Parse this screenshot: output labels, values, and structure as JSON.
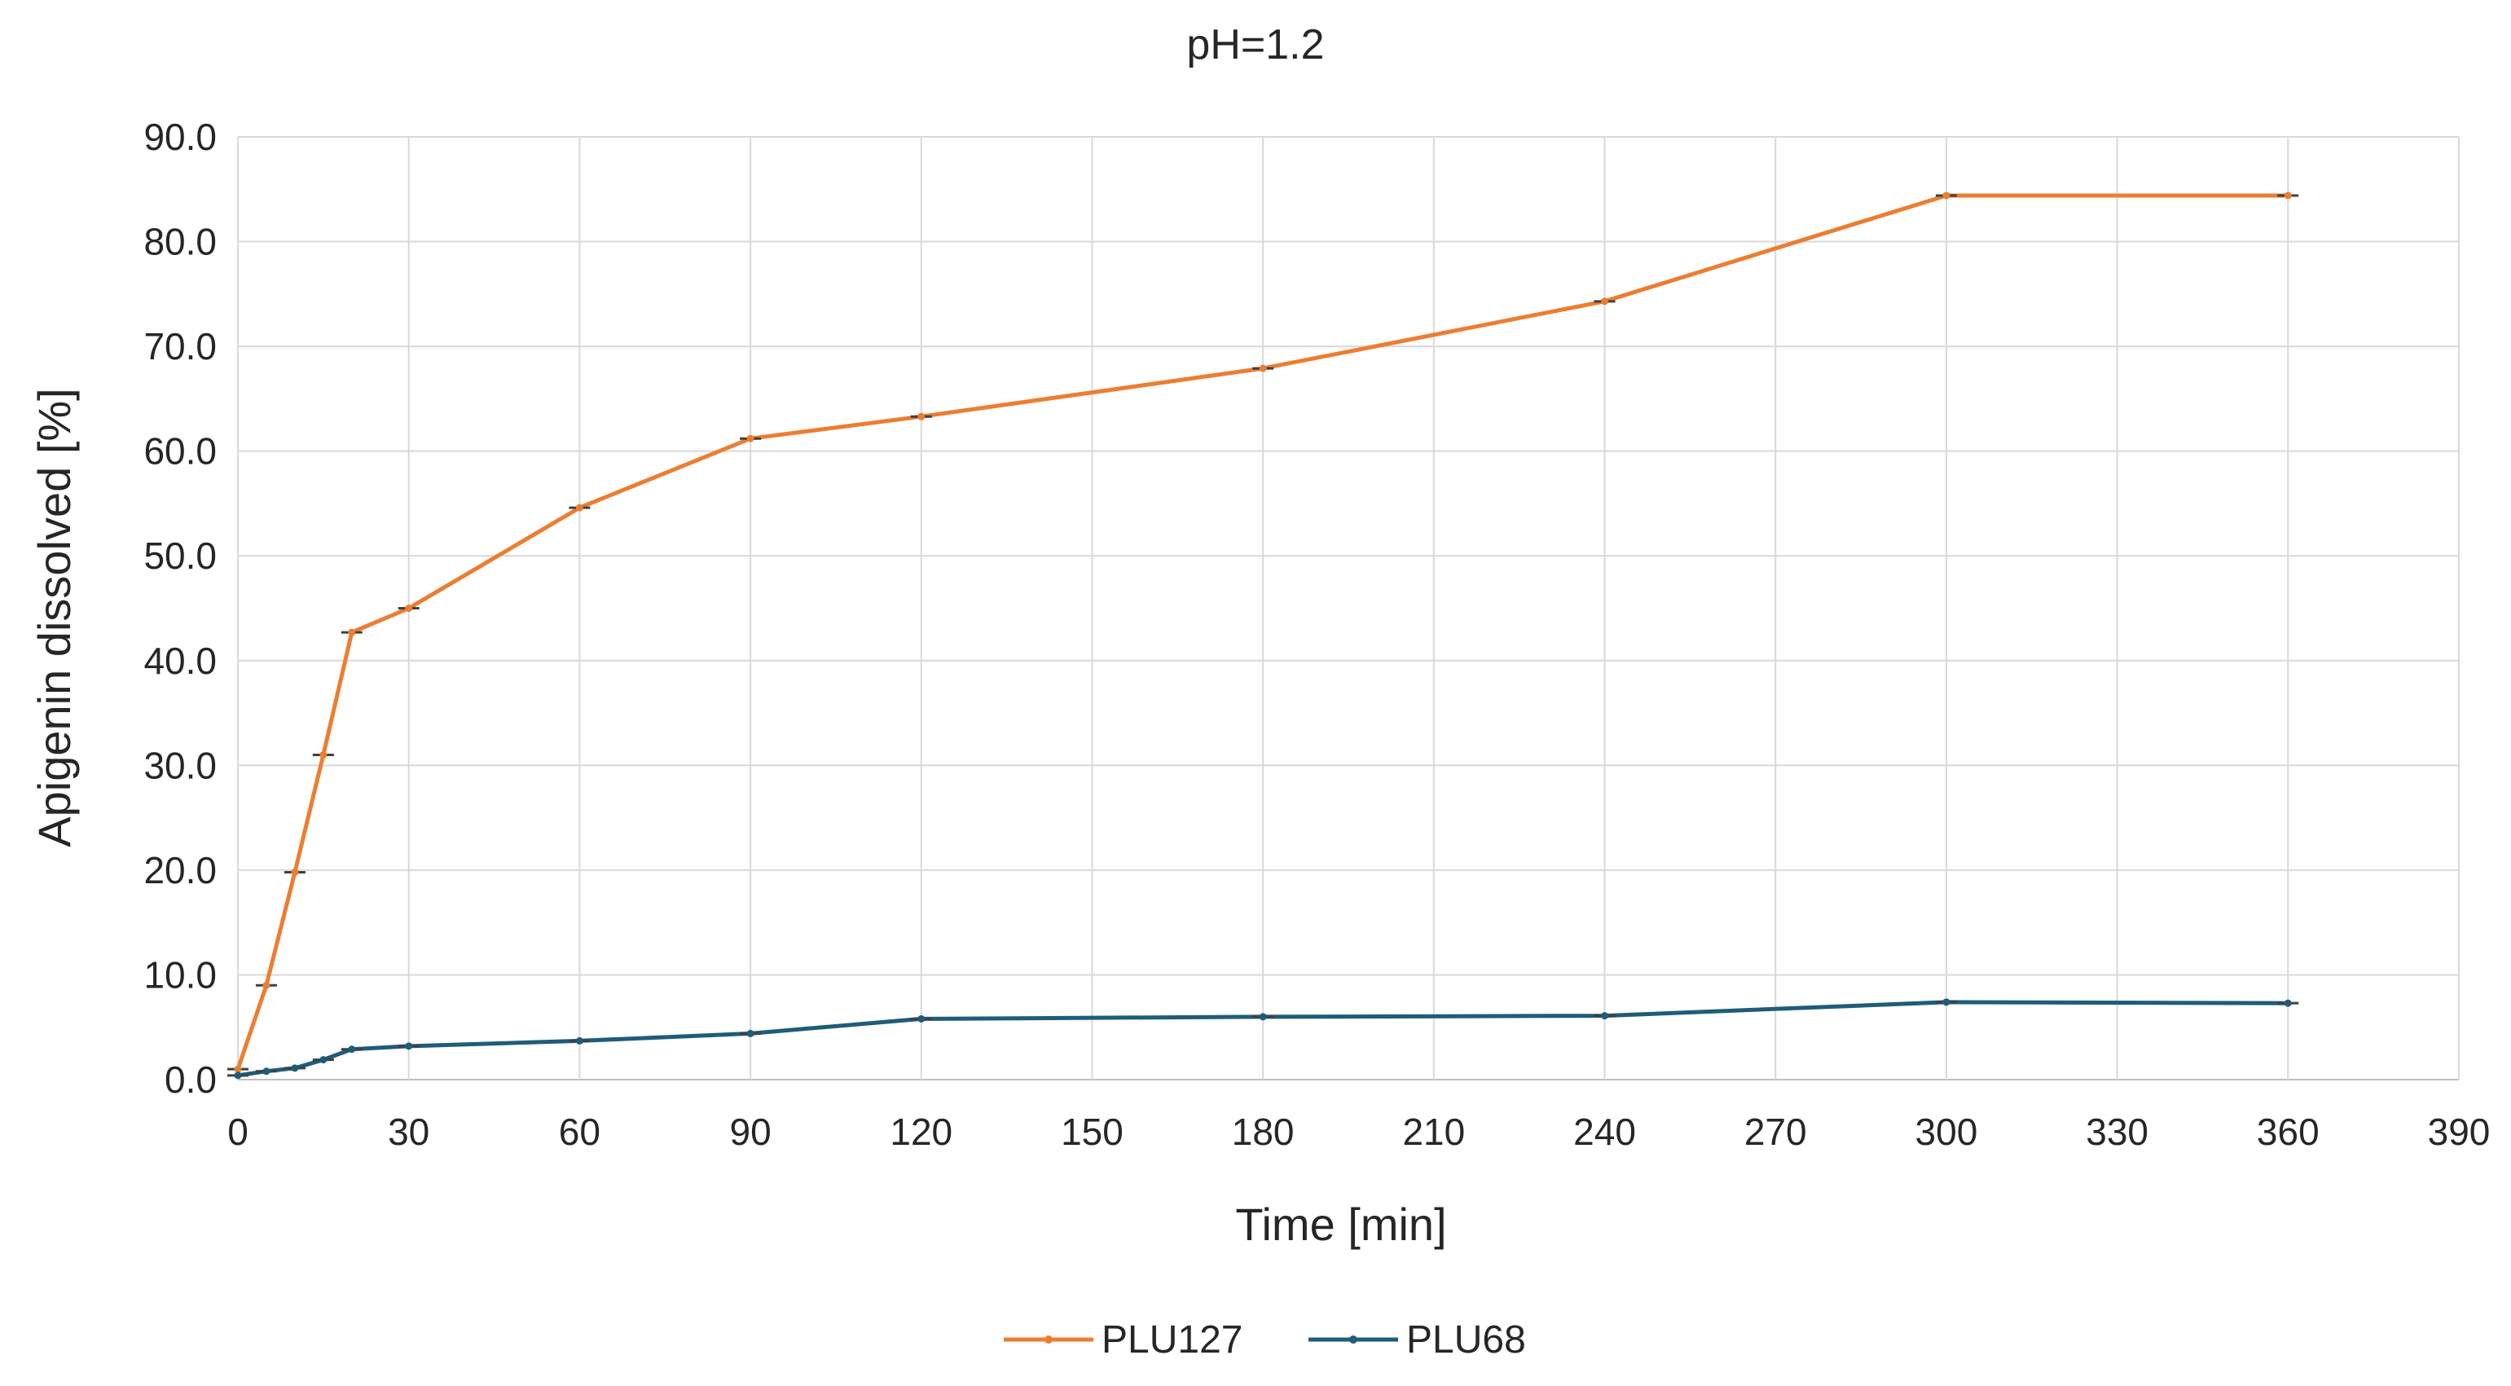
{
  "chart_data": {
    "type": "line",
    "title": "pH=1.2",
    "xlabel": "Time [min]",
    "ylabel": "Apigenin dissolved [%]",
    "xlim": [
      0,
      390
    ],
    "ylim": [
      0,
      90
    ],
    "x_ticks": [
      "0",
      "30",
      "60",
      "90",
      "120",
      "150",
      "180",
      "210",
      "240",
      "270",
      "300",
      "330",
      "360",
      "390"
    ],
    "y_ticks": [
      "0.0",
      "10.0",
      "20.0",
      "30.0",
      "40.0",
      "50.0",
      "60.0",
      "70.0",
      "80.0",
      "90.0"
    ],
    "grid": true,
    "legend_position": "bottom",
    "series": [
      {
        "name": "PLU127",
        "color": "#ED7D31",
        "x": [
          0,
          5,
          10,
          15,
          20,
          30,
          60,
          90,
          120,
          180,
          240,
          300,
          360
        ],
        "y": [
          1.0,
          9.0,
          19.8,
          31.0,
          42.7,
          45.0,
          54.6,
          61.2,
          63.3,
          67.9,
          74.3,
          84.4,
          84.4
        ]
      },
      {
        "name": "PLU68",
        "color": "#1F5C7A",
        "x": [
          0,
          5,
          10,
          15,
          20,
          30,
          60,
          90,
          120,
          180,
          240,
          300,
          360
        ],
        "y": [
          0.4,
          0.8,
          1.1,
          1.9,
          2.9,
          3.2,
          3.7,
          4.4,
          5.8,
          6.0,
          6.1,
          7.4,
          7.3
        ]
      }
    ]
  }
}
